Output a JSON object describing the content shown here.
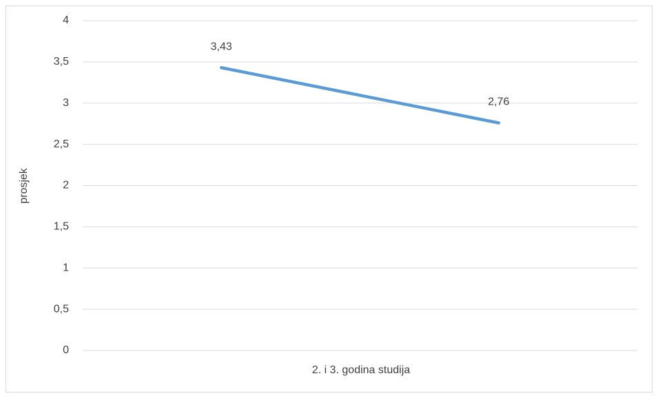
{
  "chart_data": {
    "type": "line",
    "x_label": "2. i 3. godina studija",
    "y_label": "prosjek",
    "categories": [
      null,
      null
    ],
    "series": [
      {
        "name": null,
        "color": "#5b9bd5",
        "values": [
          3.43,
          2.76
        ],
        "value_labels": [
          "3,43",
          "2,76"
        ]
      }
    ],
    "ylim": [
      0,
      4
    ],
    "yticks": [
      0,
      {
        "value": 0.5,
        "label": "0,5"
      },
      1,
      {
        "value": 1.5,
        "label": "1,5"
      },
      2,
      {
        "value": 2.5,
        "label": "2,5"
      },
      3,
      {
        "value": 3.5,
        "label": "3,5"
      },
      4
    ],
    "grid": true
  }
}
